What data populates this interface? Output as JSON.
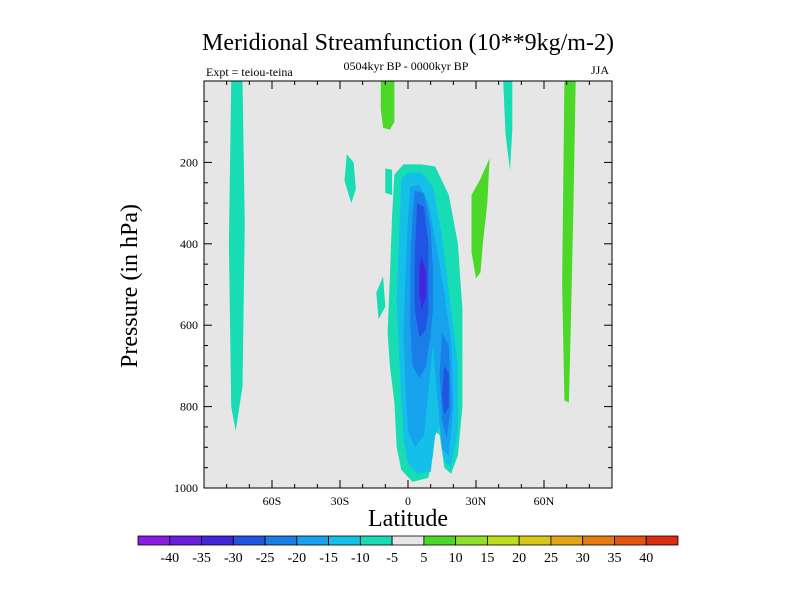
{
  "chart_data": {
    "type": "contour",
    "title": "Meridional Streamfunction (10**9kg/m-2)",
    "subtitle": "0504kyr BP - 0000kyr BP",
    "left_label": "Expt = teiou-teina",
    "right_label": "JJA",
    "xlabel": "Latitude",
    "ylabel": "Pressure (in hPa)",
    "x_ticks": [
      {
        "value": -60,
        "label": "60S"
      },
      {
        "value": -30,
        "label": "30S"
      },
      {
        "value": 0,
        "label": "0"
      },
      {
        "value": 30,
        "label": "30N"
      },
      {
        "value": 60,
        "label": "60N"
      }
    ],
    "y_ticks": [
      {
        "value": 200,
        "label": "200"
      },
      {
        "value": 400,
        "label": "400"
      },
      {
        "value": 600,
        "label": "600"
      },
      {
        "value": 800,
        "label": "800"
      },
      {
        "value": 1000,
        "label": "1000"
      }
    ],
    "xlim": [
      -90,
      90
    ],
    "ylim": [
      1000,
      0
    ],
    "background_color": "#e6e6e6",
    "colorbar": {
      "levels": [
        -40,
        -35,
        -30,
        -25,
        -20,
        -15,
        -10,
        -5,
        5,
        10,
        15,
        20,
        25,
        30,
        35,
        40
      ],
      "labels": [
        "-40",
        "-35",
        "-30",
        "-25",
        "-20",
        "-15",
        "-10",
        "-5",
        "5",
        "10",
        "15",
        "20",
        "25",
        "30",
        "35",
        "40"
      ],
      "colors": [
        "#8a1ce6",
        "#6a1ee0",
        "#4226dc",
        "#2054e2",
        "#1a7ee8",
        "#16a2ec",
        "#14c0e8",
        "#18dcb4",
        "#e6e6e6",
        "#4cd828",
        "#8ee028",
        "#bcdc1c",
        "#d8c818",
        "#e6a614",
        "#e47c10",
        "#e25410",
        "#dc2c10"
      ]
    },
    "regions": [
      {
        "level": "-10",
        "color": "#18dcb4",
        "points": [
          [
            -78,
            0
          ],
          [
            -73,
            0
          ],
          [
            -72,
            350
          ],
          [
            -73,
            750
          ],
          [
            -76,
            860
          ],
          [
            -78,
            800
          ],
          [
            -79,
            400
          ]
        ]
      },
      {
        "level": "-10",
        "color": "#18dcb4",
        "points": [
          [
            -27,
            180
          ],
          [
            -24,
            200
          ],
          [
            -23,
            265
          ],
          [
            -25,
            300
          ],
          [
            -28,
            245
          ]
        ]
      },
      {
        "level": "-10",
        "color": "#18dcb4",
        "points": [
          [
            -10,
            215
          ],
          [
            -7,
            218
          ],
          [
            -7,
            280
          ],
          [
            -10,
            275
          ]
        ]
      },
      {
        "level": "-10",
        "color": "#18dcb4",
        "points": [
          [
            -14,
            520
          ],
          [
            -11,
            480
          ],
          [
            -10,
            555
          ],
          [
            -13,
            585
          ]
        ]
      },
      {
        "level": "-10",
        "color": "#18dcb4",
        "points": [
          [
            -6,
            230
          ],
          [
            -2,
            205
          ],
          [
            6,
            205
          ],
          [
            12,
            210
          ],
          [
            18,
            280
          ],
          [
            22,
            400
          ],
          [
            24,
            560
          ],
          [
            24,
            800
          ],
          [
            22,
            920
          ],
          [
            19,
            965
          ],
          [
            16,
            950
          ],
          [
            14,
            870
          ],
          [
            12,
            860
          ],
          [
            11,
            920
          ],
          [
            9,
            975
          ],
          [
            2,
            985
          ],
          [
            -3,
            955
          ],
          [
            -5,
            900
          ],
          [
            -6,
            790
          ],
          [
            -8,
            700
          ],
          [
            -9,
            620
          ],
          [
            -8,
            480
          ],
          [
            -7,
            330
          ]
        ]
      },
      {
        "level": "-10",
        "color": "#18dcb4",
        "points": [
          [
            42,
            0
          ],
          [
            46,
            0
          ],
          [
            46,
            120
          ],
          [
            45,
            220
          ],
          [
            43,
            130
          ]
        ]
      },
      {
        "level": "-15",
        "color": "#14c0e8",
        "points": [
          [
            -3,
            240
          ],
          [
            0,
            225
          ],
          [
            6,
            225
          ],
          [
            11,
            260
          ],
          [
            15,
            380
          ],
          [
            17,
            470
          ],
          [
            19,
            560
          ],
          [
            22,
            700
          ],
          [
            22,
            860
          ],
          [
            19,
            950
          ],
          [
            16,
            935
          ],
          [
            14,
            850
          ],
          [
            12,
            870
          ],
          [
            10,
            960
          ],
          [
            4,
            965
          ],
          [
            0,
            940
          ],
          [
            -2,
            880
          ],
          [
            -3,
            780
          ],
          [
            -4,
            660
          ],
          [
            -5,
            540
          ],
          [
            -4,
            400
          ]
        ]
      },
      {
        "level": "-20",
        "color": "#16a2ec",
        "points": [
          [
            1,
            260
          ],
          [
            5,
            255
          ],
          [
            9,
            300
          ],
          [
            13,
            420
          ],
          [
            16,
            520
          ],
          [
            19,
            640
          ],
          [
            20,
            800
          ],
          [
            18,
            920
          ],
          [
            15,
            905
          ],
          [
            13,
            780
          ],
          [
            11,
            650
          ],
          [
            9,
            760
          ],
          [
            7,
            870
          ],
          [
            3,
            900
          ],
          [
            0,
            860
          ],
          [
            -1,
            760
          ],
          [
            -2,
            620
          ],
          [
            -1,
            460
          ],
          [
            0,
            340
          ]
        ]
      },
      {
        "level": "-25",
        "color": "#1a7ee8",
        "points": [
          [
            3,
            270
          ],
          [
            7,
            275
          ],
          [
            10,
            360
          ],
          [
            11,
            460
          ],
          [
            11,
            560
          ],
          [
            10,
            620
          ],
          [
            8,
            700
          ],
          [
            5,
            730
          ],
          [
            2,
            700
          ],
          [
            1,
            600
          ],
          [
            1,
            450
          ],
          [
            2,
            330
          ]
        ]
      },
      {
        "level": "-25",
        "color": "#1a7ee8",
        "points": [
          [
            15,
            620
          ],
          [
            18,
            650
          ],
          [
            19,
            800
          ],
          [
            17,
            880
          ],
          [
            15,
            830
          ],
          [
            14,
            720
          ]
        ]
      },
      {
        "level": "-30",
        "color": "#2054e2",
        "points": [
          [
            4,
            300
          ],
          [
            7,
            310
          ],
          [
            9,
            400
          ],
          [
            9,
            560
          ],
          [
            8,
            610
          ],
          [
            5,
            630
          ],
          [
            3,
            560
          ],
          [
            3,
            420
          ]
        ]
      },
      {
        "level": "-30",
        "color": "#2054e2",
        "points": [
          [
            16,
            700
          ],
          [
            18,
            720
          ],
          [
            18,
            800
          ],
          [
            16,
            820
          ],
          [
            15,
            770
          ]
        ]
      },
      {
        "level": "-35",
        "color": "#4226dc",
        "points": [
          [
            6,
            430
          ],
          [
            8,
            470
          ],
          [
            8,
            530
          ],
          [
            6,
            560
          ],
          [
            5,
            520
          ],
          [
            5,
            460
          ]
        ]
      },
      {
        "level": "5",
        "color": "#4cd828",
        "points": [
          [
            -12,
            0
          ],
          [
            -6,
            0
          ],
          [
            -6,
            100
          ],
          [
            -8,
            120
          ],
          [
            -11,
            115
          ],
          [
            -12,
            70
          ]
        ]
      },
      {
        "level": "5",
        "color": "#4cd828",
        "points": [
          [
            28,
            280
          ],
          [
            32,
            240
          ],
          [
            36,
            190
          ],
          [
            35,
            300
          ],
          [
            33,
            400
          ],
          [
            32,
            470
          ],
          [
            30,
            485
          ],
          [
            28,
            420
          ]
        ]
      },
      {
        "level": "5",
        "color": "#4cd828",
        "points": [
          [
            69,
            0
          ],
          [
            74,
            0
          ],
          [
            73,
            300
          ],
          [
            72,
            560
          ],
          [
            71,
            790
          ],
          [
            69,
            785
          ],
          [
            68,
            500
          ]
        ]
      }
    ]
  }
}
